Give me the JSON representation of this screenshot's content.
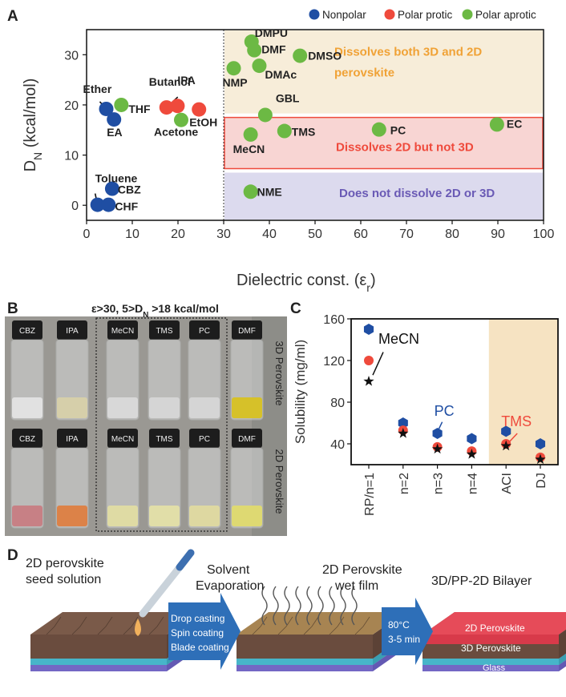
{
  "panel_labels": [
    "A",
    "B",
    "C",
    "D"
  ],
  "panelB": {
    "header": "ε>30, 5>D",
    "header_sub": "N",
    "header_tail": " >18 kcal/mol",
    "row_labels": [
      "3D Perovskite",
      "2D Perovskite"
    ],
    "vial_labels": [
      "CBZ",
      "IPA",
      "MeCN",
      "TMS",
      "PC",
      "DMF"
    ],
    "vial_colors_top": [
      "#e6e6e6",
      "#d9d2a8",
      "#dcdcdc",
      "#d8d8d8",
      "#d8d8d8",
      "#d9c21a"
    ],
    "vial_colors_bottom": [
      "#c97a80",
      "#e07c3c",
      "#e3dfa2",
      "#e6e2a6",
      "#e2dc9e",
      "#e2dd6a"
    ]
  },
  "panelD": {
    "seed_label_1": "2D perovskite",
    "seed_label_2": "seed solution",
    "arrow1_lines": [
      "Drop casting",
      "Spin coating",
      "Blade coating"
    ],
    "evap_label_1": "Solvent",
    "evap_label_2": "Evaporation",
    "wet_label_1": "2D Perovskite",
    "wet_label_2": "wet film",
    "arrow2_lines": [
      "80°C",
      "3-5 min"
    ],
    "bilayer_title": "3D/PP-2D Bilayer",
    "layer_2d": "2D Perovskite",
    "layer_3d": "3D Perovskite",
    "layer_glass": "Glass"
  },
  "chart_data": [
    {
      "type": "scatter",
      "panel": "A",
      "xlabel": "Dielectric const. (ε",
      "xlabel_sub": "r",
      "xlabel_tail": ")",
      "ylabel": "D",
      "ylabel_sub": "N",
      "ylabel_tail": " (kcal/mol)",
      "xlim": [
        0,
        100
      ],
      "ylim": [
        -3,
        35
      ],
      "xticks": [
        0,
        10,
        20,
        30,
        40,
        50,
        60,
        70,
        80,
        90,
        100
      ],
      "yticks": [
        0,
        10,
        20,
        30
      ],
      "legend": [
        {
          "name": "Nonpolar",
          "color": "#1f4ea3"
        },
        {
          "name": "Polar protic",
          "color": "#ef4a3c"
        },
        {
          "name": "Polar aprotic",
          "color": "#6cb944"
        }
      ],
      "regions": [
        {
          "label": "Dissolves both 3D and 2D",
          "label2": "perovskite",
          "y0": 18.3,
          "y1": 35,
          "fill": "#f7edd9",
          "stroke": "none",
          "text_color": "#f0a236"
        },
        {
          "label": "Dissolves 2D but not 3D",
          "label2": "",
          "y0": 7.3,
          "y1": 17.5,
          "fill": "#f8d5d3",
          "stroke": "#ef4a3c",
          "text_color": "#ef4a3c"
        },
        {
          "label": "Does not dissolve 2D or 3D",
          "label2": "",
          "y0": -3,
          "y1": 6.5,
          "fill": "#dcdaee",
          "stroke": "none",
          "text_color": "#6a5ab5"
        }
      ],
      "divider_x": 30,
      "points": [
        {
          "name": "Ether",
          "x": 4.3,
          "y": 19.2,
          "cls": "Nonpolar"
        },
        {
          "name": "EA",
          "x": 6.0,
          "y": 17.1,
          "cls": "Nonpolar"
        },
        {
          "name": "THF",
          "x": 7.6,
          "y": 20.0,
          "cls": "Polar aprotic"
        },
        {
          "name": "Toluene",
          "x": 2.4,
          "y": 0.1,
          "cls": "Nonpolar"
        },
        {
          "name": "CBZ",
          "x": 5.6,
          "y": 3.3,
          "cls": "Nonpolar"
        },
        {
          "name": "CHF",
          "x": 4.8,
          "y": 0.1,
          "cls": "Nonpolar"
        },
        {
          "name": "Butanol",
          "x": 17.5,
          "y": 19.5,
          "cls": "Polar protic"
        },
        {
          "name": "IPA",
          "x": 19.9,
          "y": 19.8,
          "cls": "Polar protic"
        },
        {
          "name": "EtOH",
          "x": 24.6,
          "y": 19.1,
          "cls": "Polar protic"
        },
        {
          "name": "Acetone",
          "x": 20.7,
          "y": 17.0,
          "cls": "Polar aprotic"
        },
        {
          "name": "DMPU",
          "x": 36.1,
          "y": 32.6,
          "cls": "Polar aprotic"
        },
        {
          "name": "DMF",
          "x": 36.7,
          "y": 30.9,
          "cls": "Polar aprotic"
        },
        {
          "name": "NMP",
          "x": 32.2,
          "y": 27.3,
          "cls": "Polar aprotic"
        },
        {
          "name": "DMAc",
          "x": 37.8,
          "y": 27.8,
          "cls": "Polar aprotic"
        },
        {
          "name": "DMSO",
          "x": 46.7,
          "y": 29.8,
          "cls": "Polar aprotic"
        },
        {
          "name": "GBL",
          "x": 39.1,
          "y": 18.0,
          "cls": "Polar aprotic"
        },
        {
          "name": "MeCN",
          "x": 35.9,
          "y": 14.1,
          "cls": "Polar aprotic"
        },
        {
          "name": "TMS",
          "x": 43.3,
          "y": 14.8,
          "cls": "Polar aprotic"
        },
        {
          "name": "PC",
          "x": 64.0,
          "y": 15.1,
          "cls": "Polar aprotic"
        },
        {
          "name": "EC",
          "x": 89.8,
          "y": 16.1,
          "cls": "Polar aprotic"
        },
        {
          "name": "NME",
          "x": 35.9,
          "y": 2.7,
          "cls": "Polar aprotic"
        }
      ]
    },
    {
      "type": "scatter",
      "panel": "C",
      "ylabel": "Solubility (mg/ml)",
      "categories": [
        "RP/n=1",
        "n=2",
        "n=3",
        "n=4",
        "ACI",
        "DJ"
      ],
      "ylim": [
        20,
        160
      ],
      "yticks": [
        40,
        80,
        120,
        160
      ],
      "shaded_categories": [
        "ACI",
        "DJ"
      ],
      "series": [
        {
          "name": "MeCN",
          "marker": "star",
          "color": "#111111",
          "values": [
            100,
            50,
            35,
            30,
            38,
            25
          ]
        },
        {
          "name": "PC",
          "marker": "hexagon",
          "color": "#1f4ea3",
          "values": [
            150,
            60,
            50,
            45,
            52,
            40
          ]
        },
        {
          "name": "TMS",
          "marker": "circle",
          "color": "#ef4a3c",
          "values": [
            120,
            53,
            37,
            33,
            40,
            27
          ]
        }
      ],
      "annotations": [
        {
          "text": "MeCN",
          "color": "#111111"
        },
        {
          "text": "PC",
          "color": "#1f4ea3"
        },
        {
          "text": "TMS",
          "color": "#ef4a3c"
        }
      ]
    }
  ]
}
